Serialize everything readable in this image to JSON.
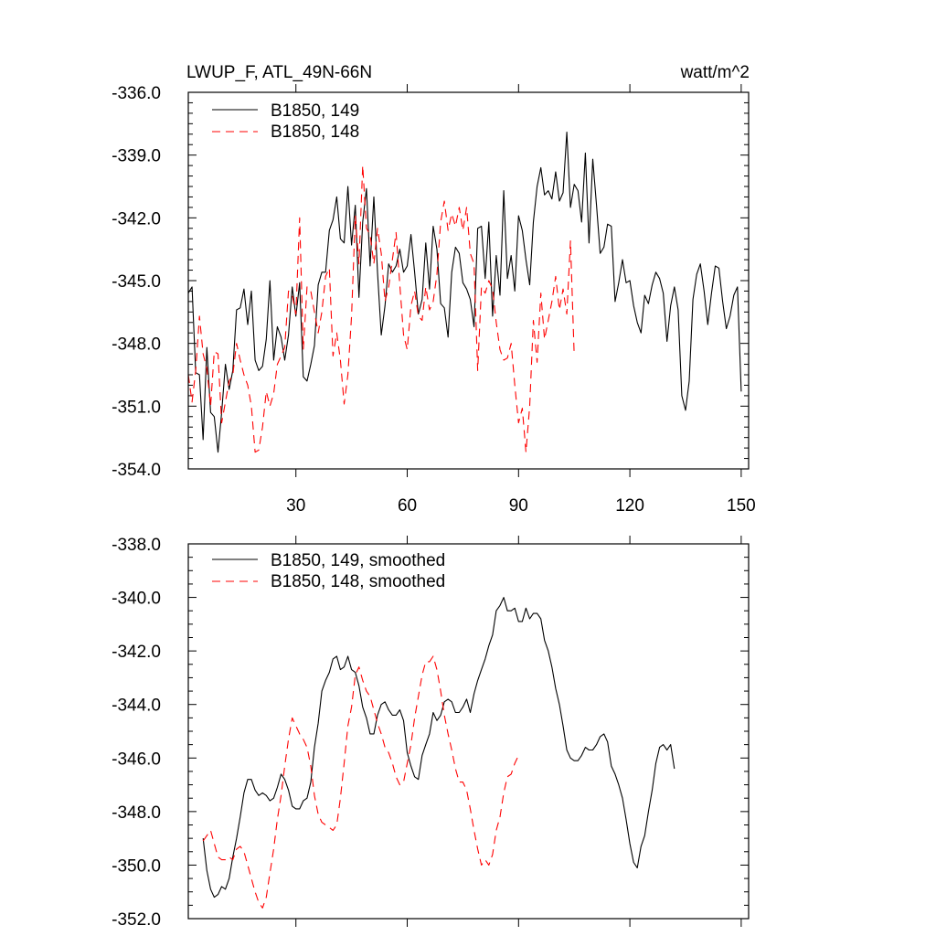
{
  "chart_data": [
    {
      "type": "line",
      "title": "LWUP_F, ATL_49N-66N",
      "units": "watt/m^2",
      "xlabel": "",
      "ylabel": "",
      "xlim": [
        1,
        152
      ],
      "ylim": [
        -354.0,
        -336.0
      ],
      "xticks": [
        30,
        60,
        90,
        120,
        150
      ],
      "yticks": [
        "-336.0",
        "-339.0",
        "-342.0",
        "-345.0",
        "-348.0",
        "-351.0",
        "-354.0"
      ],
      "legend_position": "top-left",
      "series": [
        {
          "name": "B1850, 149",
          "color": "#000000",
          "dash": "solid",
          "start_x": 1,
          "values": [
            -345.6,
            -345.3,
            -349.4,
            -349.5,
            -352.6,
            -348.2,
            -351.3,
            -351.5,
            -353.2,
            -351.3,
            -349.0,
            -350.2,
            -349.3,
            -346.4,
            -346.3,
            -345.4,
            -347.1,
            -345.5,
            -348.8,
            -349.3,
            -349.1,
            -347.8,
            -345.0,
            -348.8,
            -347.2,
            -347.7,
            -348.8,
            -347.6,
            -345.3,
            -346.7,
            -345.1,
            -349.6,
            -349.8,
            -349.0,
            -348.1,
            -345.2,
            -344.6,
            -344.6,
            -342.6,
            -342.1,
            -341.0,
            -343.0,
            -343.2,
            -340.5,
            -343.3,
            -341.4,
            -345.8,
            -342.2,
            -340.6,
            -344.3,
            -341.0,
            -344.6,
            -347.6,
            -346.2,
            -344.2,
            -344.6,
            -344.3,
            -343.5,
            -344.6,
            -344.3,
            -342.8,
            -344.6,
            -346.6,
            -345.9,
            -343.2,
            -345.4,
            -342.4,
            -343.5,
            -346.1,
            -346.3,
            -347.7,
            -344.6,
            -343.4,
            -343.7,
            -345.1,
            -345.4,
            -345.9,
            -347.2,
            -342.5,
            -342.4,
            -344.9,
            -342.2,
            -346.7,
            -343.8,
            -345.7,
            -340.7,
            -344.9,
            -343.8,
            -345.5,
            -341.9,
            -342.6,
            -344.0,
            -345.2,
            -342.2,
            -340.5,
            -339.6,
            -340.9,
            -340.7,
            -341.1,
            -339.8,
            -341.2,
            -340.8,
            -337.9,
            -341.5,
            -340.4,
            -340.7,
            -342.2,
            -338.9,
            -343.2,
            -339.2,
            -341.4,
            -343.7,
            -343.4,
            -342.3,
            -342.4,
            -346.0,
            -345.1,
            -344.0,
            -345.1,
            -345.0,
            -346.2,
            -347.0,
            -347.5,
            -345.7,
            -346.1,
            -345.2,
            -344.6,
            -344.9,
            -345.6,
            -347.9,
            -346.2,
            -345.3,
            -346.4,
            -350.5,
            -351.2,
            -349.8,
            -345.9,
            -344.7,
            -344.2,
            -345.5,
            -347.1,
            -345.6,
            -344.3,
            -344.4,
            -346.0,
            -347.3,
            -346.7,
            -345.7,
            -345.3,
            -350.3
          ]
        },
        {
          "name": "B1850, 148",
          "color": "#ff0000",
          "dash": "dashed",
          "start_x": 1,
          "values": [
            -349.5,
            -350.8,
            -349.3,
            -346.7,
            -348.5,
            -349.2,
            -351.0,
            -348.4,
            -348.5,
            -351.8,
            -350.8,
            -349.8,
            -349.5,
            -348.0,
            -348.8,
            -349.5,
            -350.0,
            -351.0,
            -353.2,
            -353.1,
            -352.0,
            -350.3,
            -351.0,
            -350.4,
            -349.0,
            -348.6,
            -348.2,
            -345.5,
            -345.7,
            -346.6,
            -342.0,
            -348.3,
            -345.3,
            -345.5,
            -346.5,
            -347.5,
            -346.5,
            -344.8,
            -344.4,
            -348.6,
            -347.5,
            -348.8,
            -350.9,
            -349.5,
            -346.7,
            -341.9,
            -344.2,
            -339.5,
            -342.5,
            -342.8,
            -344.2,
            -342.5,
            -343.7,
            -346.0,
            -345.3,
            -344.0,
            -342.7,
            -345.2,
            -347.6,
            -348.3,
            -346.2,
            -345.5,
            -346.7,
            -346.9,
            -345.3,
            -346.4,
            -346.0,
            -344.7,
            -342.2,
            -341.2,
            -342.6,
            -341.8,
            -342.4,
            -341.5,
            -342.6,
            -341.5,
            -343.7,
            -344.2,
            -349.3,
            -345.3,
            -345.6,
            -345.0,
            -345.4,
            -347.0,
            -348.3,
            -348.8,
            -348.7,
            -348.0,
            -350.0,
            -351.8,
            -351.1,
            -353.2,
            -351.0,
            -346.9,
            -348.9,
            -345.6,
            -347.8,
            -346.9,
            -346.0,
            -344.8,
            -346.4,
            -345.4,
            -346.6,
            -343.1,
            -348.6
          ]
        }
      ]
    },
    {
      "type": "line",
      "title": "",
      "xlabel": "",
      "ylabel": "",
      "xlim": [
        1,
        152
      ],
      "ylim": [
        -352.0,
        -338.0
      ],
      "xticks": [
        30,
        60,
        90,
        120,
        150
      ],
      "yticks": [
        "-338.0",
        "-340.0",
        "-342.0",
        "-344.0",
        "-346.0",
        "-348.0",
        "-350.0",
        "-352.0"
      ],
      "legend_position": "top-left",
      "series": [
        {
          "name": "B1850, 149, smoothed",
          "color": "#000000",
          "dash": "solid",
          "start_x": 5,
          "values": [
            -349.0,
            -350.2,
            -350.9,
            -351.2,
            -351.1,
            -350.8,
            -350.9,
            -350.5,
            -349.7,
            -349.0,
            -348.2,
            -347.3,
            -346.8,
            -346.8,
            -347.2,
            -347.4,
            -347.3,
            -347.4,
            -347.6,
            -347.5,
            -347.1,
            -346.6,
            -346.8,
            -347.2,
            -347.8,
            -347.9,
            -347.9,
            -347.6,
            -347.5,
            -346.9,
            -345.6,
            -344.7,
            -343.5,
            -343.1,
            -342.8,
            -342.3,
            -342.2,
            -342.7,
            -342.6,
            -342.2,
            -342.7,
            -342.8,
            -343.3,
            -344.1,
            -344.5,
            -345.1,
            -345.1,
            -344.4,
            -344.0,
            -343.9,
            -344.2,
            -344.4,
            -344.4,
            -344.2,
            -344.6,
            -345.8,
            -346.3,
            -346.7,
            -346.8,
            -345.9,
            -345.5,
            -345.1,
            -344.3,
            -344.6,
            -344.4,
            -343.9,
            -343.8,
            -343.9,
            -344.3,
            -344.3,
            -344.1,
            -343.8,
            -344.3,
            -343.6,
            -343.1,
            -342.7,
            -342.3,
            -341.8,
            -341.4,
            -340.5,
            -340.3,
            -340.0,
            -340.5,
            -340.5,
            -340.4,
            -340.9,
            -340.9,
            -340.4,
            -340.8,
            -340.6,
            -340.6,
            -340.8,
            -341.6,
            -342.0,
            -342.6,
            -343.4,
            -344.0,
            -344.8,
            -345.7,
            -346.0,
            -346.1,
            -346.1,
            -345.9,
            -345.6,
            -345.7,
            -345.7,
            -345.5,
            -345.2,
            -345.1,
            -345.4,
            -346.3,
            -346.6,
            -347.0,
            -347.5,
            -348.3,
            -349.2,
            -349.9,
            -350.1,
            -349.3,
            -348.9,
            -348.0,
            -347.2,
            -346.2,
            -345.6,
            -345.5,
            -345.7,
            -345.5,
            -346.4
          ]
        },
        {
          "name": "B1850, 148, smoothed",
          "color": "#ff0000",
          "dash": "dashed",
          "start_x": 5,
          "values": [
            -349.1,
            -348.9,
            -348.7,
            -349.2,
            -349.7,
            -349.8,
            -349.8,
            -349.7,
            -349.8,
            -349.4,
            -349.3,
            -349.5,
            -350.0,
            -350.5,
            -351.0,
            -351.4,
            -351.6,
            -351.2,
            -350.3,
            -349.4,
            -348.3,
            -347.4,
            -346.3,
            -345.3,
            -344.5,
            -344.8,
            -345.1,
            -345.3,
            -345.6,
            -346.3,
            -347.4,
            -348.1,
            -348.4,
            -348.5,
            -348.6,
            -348.7,
            -348.5,
            -347.5,
            -346.2,
            -344.8,
            -344.1,
            -342.9,
            -342.6,
            -343.1,
            -343.5,
            -343.7,
            -344.2,
            -344.7,
            -345.1,
            -345.6,
            -345.8,
            -346.2,
            -346.7,
            -347.0,
            -346.9,
            -346.2,
            -345.5,
            -344.5,
            -343.7,
            -342.9,
            -342.4,
            -342.4,
            -342.2,
            -342.7,
            -343.5,
            -344.4,
            -345.1,
            -345.7,
            -346.4,
            -346.9,
            -346.9,
            -347.2,
            -347.9,
            -348.7,
            -349.4,
            -350.0,
            -349.8,
            -350.0,
            -349.6,
            -348.7,
            -348.2,
            -347.3,
            -346.7,
            -346.6,
            -346.2,
            -345.9
          ]
        }
      ]
    }
  ]
}
